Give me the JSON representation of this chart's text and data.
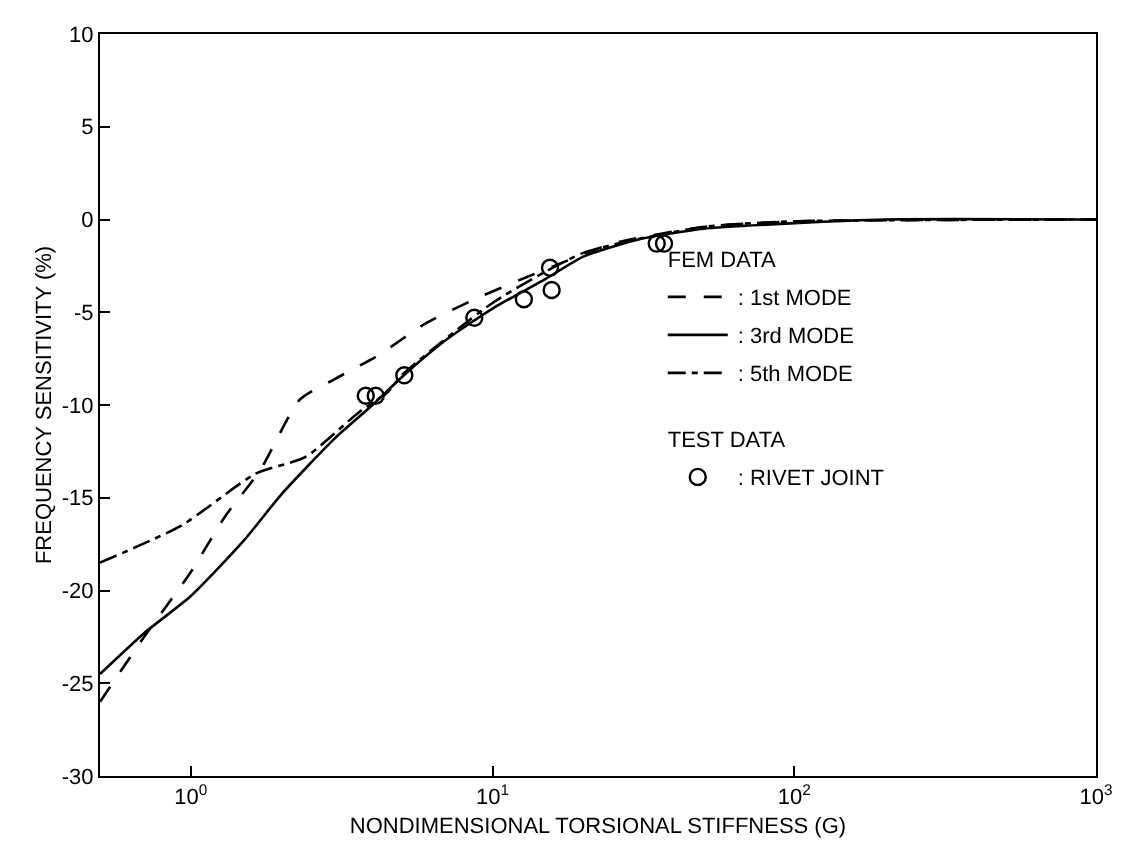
{
  "chart_data": {
    "type": "line",
    "xlabel": "NONDIMENSIONAL TORSIONAL STIFFNESS (G)",
    "ylabel": "FREQUENCY SENSITIVITY (%)",
    "log": "x",
    "xlim": [
      0.5,
      1000
    ],
    "xticks": [
      {
        "value": 1,
        "label": "10$^{0}$"
      },
      {
        "value": 10,
        "label": "10$^{1}$"
      },
      {
        "value": 100,
        "label": "10$^{2}$"
      },
      {
        "value": 1000,
        "label": "10$^{3}$"
      }
    ],
    "ylim": [
      -30,
      10
    ],
    "yticks": [
      -30,
      -25,
      -20,
      -15,
      -10,
      -5,
      0,
      5,
      10
    ],
    "legend": "right",
    "legend_title": "FEM DATA",
    "annotations": [
      "TEST DATA"
    ],
    "series": [
      {
        "name": ": 1st MODE",
        "color": "#000000",
        "line_style": "dashed",
        "marker": "none",
        "x": [
          0.5,
          0.7,
          1,
          1.3,
          1.7,
          2.3,
          3,
          4.2,
          6,
          9,
          13,
          16,
          25,
          50,
          100,
          1000
        ],
        "values": [
          -26,
          -22.5,
          -19,
          -16,
          -13.5,
          -9.7,
          -8.6,
          -7.3,
          -5.6,
          -4.2,
          -3.1,
          -2.5,
          -1.3,
          -0.4,
          -0.1,
          0
        ]
      },
      {
        "name": ": 3rd MODE",
        "color": "#000000",
        "line_style": "solid",
        "marker": "none",
        "x": [
          0.5,
          0.7,
          1,
          1.5,
          2,
          3,
          4,
          5,
          7,
          10,
          15,
          20,
          30,
          50,
          100,
          200,
          1000
        ],
        "values": [
          -24.5,
          -22.3,
          -20.3,
          -17.3,
          -14.8,
          -11.8,
          -10,
          -8.5,
          -6.5,
          -4.8,
          -3.2,
          -2,
          -1.1,
          -0.5,
          -0.2,
          0,
          0
        ]
      },
      {
        "name": ": 5th MODE",
        "color": "#000000",
        "line_style": "dashdot",
        "marker": "none",
        "x": [
          0.5,
          0.93,
          1.64,
          2.4,
          3.6,
          4.5,
          5,
          10,
          20,
          50,
          100,
          1000
        ],
        "values": [
          -18.5,
          -16.5,
          -13.7,
          -12.8,
          -10.4,
          -9.3,
          -8.4,
          -4.5,
          -1.8,
          -0.4,
          -0.1,
          0
        ]
      },
      {
        "name": ": RIVET JOINT",
        "type": "scatter",
        "color": "#000000",
        "marker": "circle",
        "x": [
          3.8,
          4.1,
          5.1,
          8.7,
          12.7,
          15.7,
          15.5,
          35,
          37
        ],
        "values": [
          -9.5,
          -9.5,
          -8.4,
          -5.3,
          -4.3,
          -3.8,
          -2.6,
          -1.3,
          -1.3
        ]
      }
    ]
  }
}
